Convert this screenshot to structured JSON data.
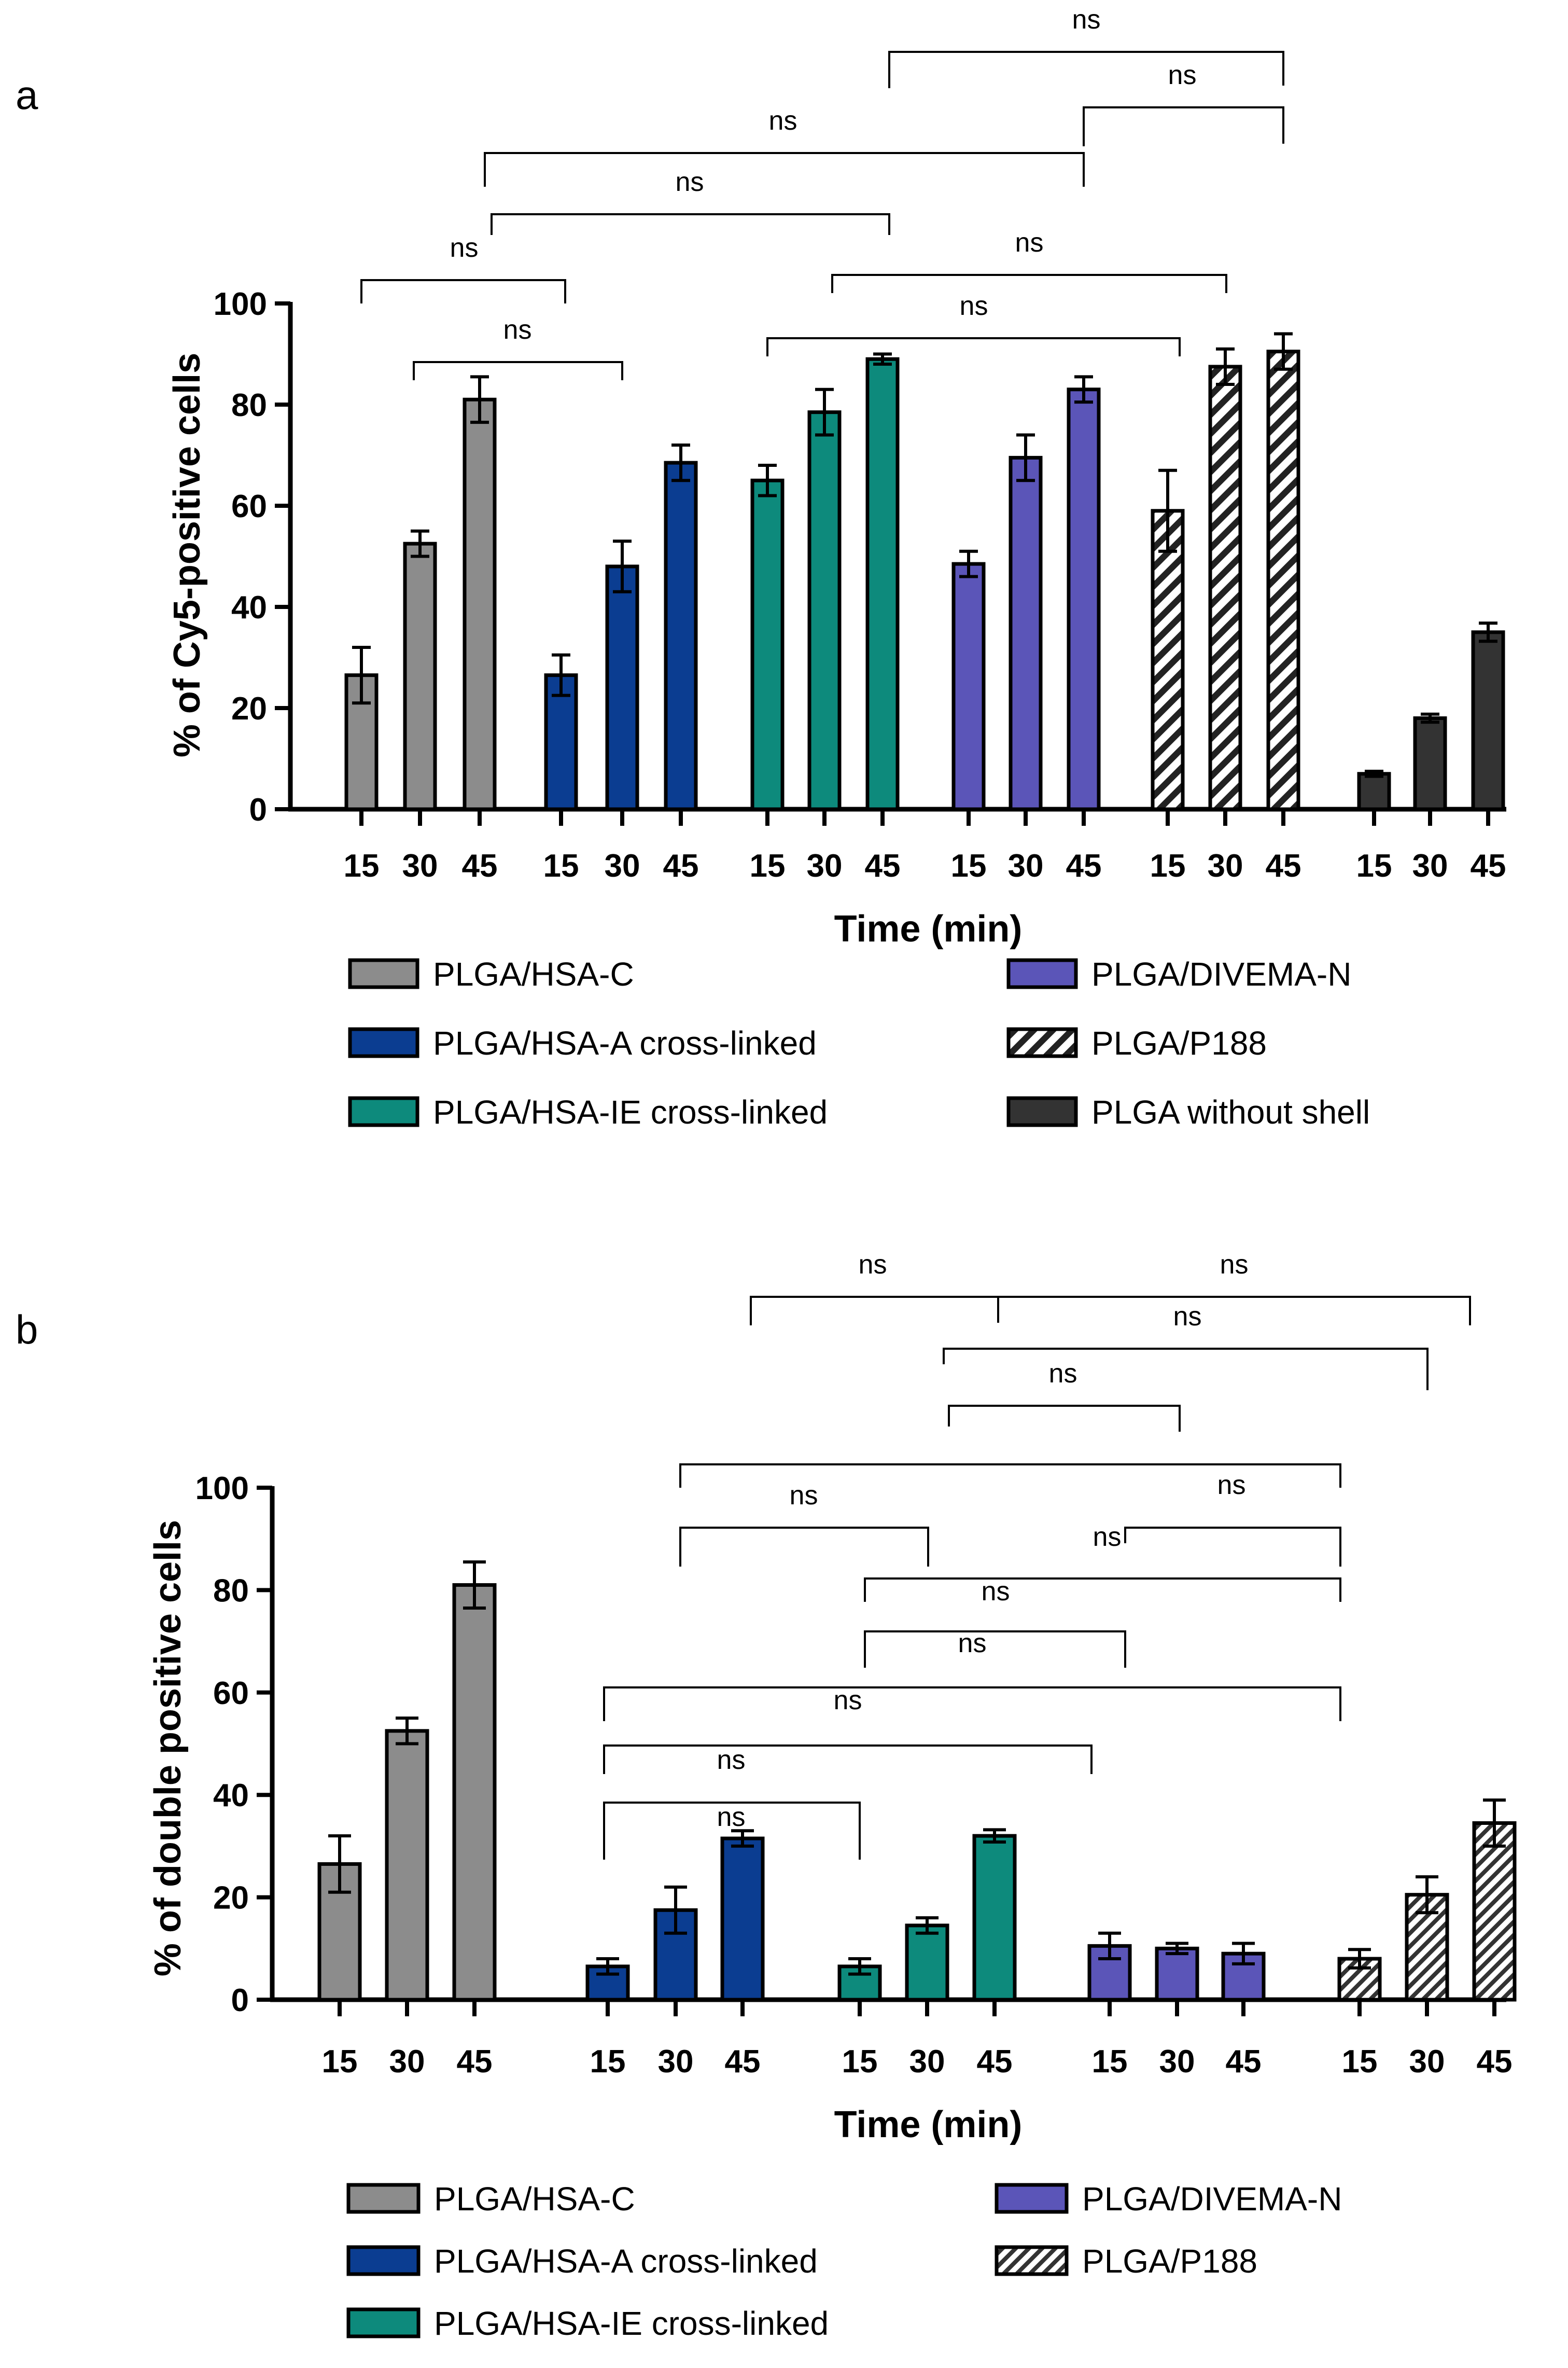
{
  "chart_data": [
    {
      "panel": "a",
      "type": "bar",
      "xlabel": "Time (min)",
      "ylabel": "% of Cy5-positive cells",
      "ylim": [
        0,
        100
      ],
      "yticks": [
        "0",
        "20",
        "40",
        "60",
        "80",
        "100"
      ],
      "categories": [
        "15",
        "30",
        "45"
      ],
      "series": [
        {
          "name": "PLGA/HSA-C",
          "color": "#8c8c8c",
          "pattern": "solid",
          "values": [
            26.5,
            52.5,
            81
          ],
          "errors": [
            5.5,
            2.5,
            4.5
          ]
        },
        {
          "name": "PLGA/HSA-A cross-linked",
          "color": "#0b3d91",
          "pattern": "solid",
          "values": [
            26.5,
            48,
            68.5
          ],
          "errors": [
            4,
            5,
            3.5
          ]
        },
        {
          "name": "PLGA/HSA-IE cross-linked",
          "color": "#0d8a7c",
          "pattern": "solid",
          "values": [
            65,
            78.5,
            89
          ],
          "errors": [
            3,
            4.5,
            1
          ]
        },
        {
          "name": "PLGA/DIVEMA-N",
          "color": "#5b55b8",
          "pattern": "solid",
          "values": [
            48.5,
            69.5,
            83
          ],
          "errors": [
            2.5,
            4.5,
            2.5
          ]
        },
        {
          "name": "PLGA/P188",
          "color": "#ffffff",
          "pattern": "hatch",
          "values": [
            59,
            87.5,
            90.5
          ],
          "errors": [
            8,
            3.5,
            3.5
          ]
        },
        {
          "name": "PLGA without shell",
          "color": "#333333",
          "pattern": "solid",
          "values": [
            7,
            18,
            35
          ],
          "errors": [
            0.5,
            0.8,
            1.8
          ]
        }
      ],
      "comparisons": [
        "ns",
        "ns",
        "ns",
        "ns",
        "ns",
        "ns",
        "ns",
        "ns"
      ],
      "legend": [
        "PLGA/HSA-C",
        "PLGA/HSA-A cross-linked",
        "PLGA/HSA-IE cross-linked",
        "PLGA/DIVEMA-N",
        "PLGA/P188",
        "PLGA without shell"
      ]
    },
    {
      "panel": "b",
      "type": "bar",
      "xlabel": "Time (min)",
      "ylabel": "% of double positive cells",
      "ylim": [
        0,
        100
      ],
      "yticks": [
        "0",
        "20",
        "40",
        "60",
        "80",
        "100"
      ],
      "categories": [
        "15",
        "30",
        "45"
      ],
      "series": [
        {
          "name": "PLGA/HSA-C",
          "color": "#8c8c8c",
          "pattern": "solid",
          "values": [
            26.5,
            52.5,
            81
          ],
          "errors": [
            5.5,
            2.5,
            4.5
          ]
        },
        {
          "name": "PLGA/HSA-A cross-linked",
          "color": "#0b3d91",
          "pattern": "solid",
          "values": [
            6.5,
            17.5,
            31.5
          ],
          "errors": [
            1.5,
            4.5,
            1.5
          ]
        },
        {
          "name": "PLGA/HSA-IE cross-linked",
          "color": "#0d8a7c",
          "pattern": "solid",
          "values": [
            6.5,
            14.5,
            32
          ],
          "errors": [
            1.5,
            1.5,
            1.2
          ]
        },
        {
          "name": "PLGA/DIVEMA-N",
          "color": "#5b55b8",
          "pattern": "solid",
          "values": [
            10.5,
            10,
            9
          ],
          "errors": [
            2.5,
            1,
            2
          ]
        },
        {
          "name": "PLGA/P188",
          "color": "#ffffff",
          "pattern": "hatch",
          "values": [
            8,
            20.5,
            34.5
          ],
          "errors": [
            1.8,
            3.5,
            4.5
          ]
        }
      ],
      "comparisons": [
        "ns",
        "ns",
        "ns",
        "ns",
        "ns",
        "ns",
        "ns",
        "ns",
        "ns",
        "ns",
        "ns",
        "ns"
      ],
      "legend": [
        "PLGA/HSA-C",
        "PLGA/HSA-A cross-linked",
        "PLGA/HSA-IE cross-linked",
        "PLGA/DIVEMA-N",
        "PLGA/P188"
      ]
    }
  ]
}
